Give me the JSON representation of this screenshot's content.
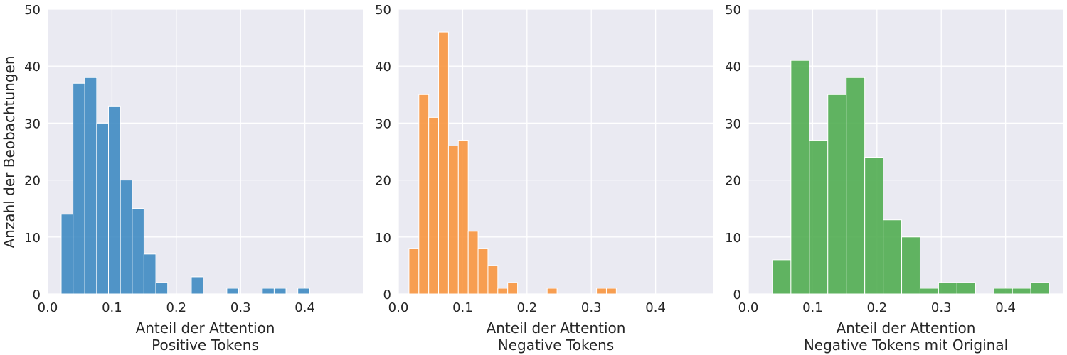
{
  "figure": {
    "ylabel": "Anzahl der Beobachtungen",
    "background": "#eaeaf2",
    "grid_color": "#ffffff"
  },
  "chart_data": [
    {
      "type": "bar",
      "title": "",
      "xlabel_lines": [
        "Anteil der Attention",
        "Positive Tokens"
      ],
      "xlim": [
        0.0,
        0.49
      ],
      "ylim": [
        0,
        50
      ],
      "xticks": [
        0.0,
        0.1,
        0.2,
        0.3,
        0.4
      ],
      "xtick_labels": [
        "0.0",
        "0.1",
        "0.2",
        "0.3",
        "0.4"
      ],
      "yticks": [
        0,
        10,
        20,
        30,
        40,
        50
      ],
      "ytick_labels": [
        "0",
        "10",
        "20",
        "30",
        "40",
        "50"
      ],
      "grid": true,
      "color": "#3a87c0",
      "bin_start": 0.021,
      "bin_width": 0.0184,
      "counts": [
        14,
        37,
        38,
        30,
        33,
        20,
        15,
        7,
        2,
        0,
        0,
        3,
        0,
        0,
        1,
        0,
        0,
        1,
        1,
        0,
        1
      ]
    },
    {
      "type": "bar",
      "title": "",
      "xlabel_lines": [
        "Anteil der Attention",
        "Negative Tokens"
      ],
      "xlim": [
        0.0,
        0.49
      ],
      "ylim": [
        0,
        50
      ],
      "xticks": [
        0.0,
        0.1,
        0.2,
        0.3,
        0.4
      ],
      "xtick_labels": [
        "0.0",
        "0.1",
        "0.2",
        "0.3",
        "0.4"
      ],
      "yticks": [
        0,
        10,
        20,
        30,
        40,
        50
      ],
      "ytick_labels": [
        "0",
        "10",
        "20",
        "30",
        "40",
        "50"
      ],
      "grid": true,
      "color": "#f8933a",
      "bin_start": 0.0165,
      "bin_width": 0.01535,
      "counts": [
        8,
        35,
        31,
        46,
        26,
        27,
        11,
        8,
        5,
        1,
        2,
        0,
        0,
        0,
        1,
        0,
        0,
        0,
        0,
        1,
        1
      ]
    },
    {
      "type": "bar",
      "title": "",
      "xlabel_lines": [
        "Anteil der Attention",
        "Negative Tokens mit Original"
      ],
      "xlim": [
        0.0,
        0.49
      ],
      "ylim": [
        0,
        50
      ],
      "xticks": [
        0.0,
        0.1,
        0.2,
        0.3,
        0.4
      ],
      "xtick_labels": [
        "0.0",
        "0.1",
        "0.2",
        "0.3",
        "0.4"
      ],
      "yticks": [
        0,
        10,
        20,
        30,
        40,
        50
      ],
      "ytick_labels": [
        "0",
        "10",
        "20",
        "30",
        "40",
        "50"
      ],
      "grid": true,
      "color": "#4cab4c",
      "bin_start": 0.0375,
      "bin_width": 0.0287,
      "counts": [
        6,
        41,
        27,
        35,
        38,
        24,
        13,
        10,
        1,
        2,
        2,
        0,
        1,
        1,
        2
      ]
    }
  ]
}
